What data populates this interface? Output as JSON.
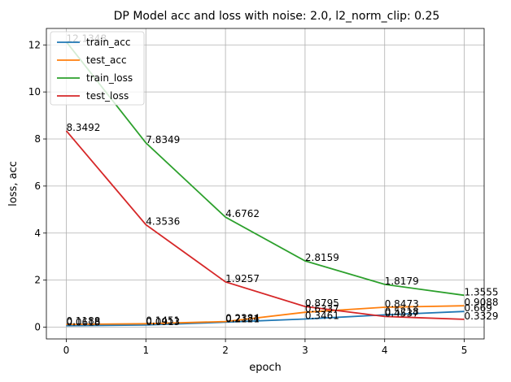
{
  "chart_data": {
    "type": "line",
    "title": "DP Model acc and loss with noise: 2.0, l2_norm_clip: 0.25",
    "xlabel": "epoch",
    "ylabel": "loss, acc",
    "x": [
      0,
      1,
      2,
      3,
      4,
      5
    ],
    "xticks": [
      "0",
      "1",
      "2",
      "3",
      "4",
      "5"
    ],
    "yticks": [
      "0",
      "2",
      "4",
      "6",
      "8",
      "10",
      "12"
    ],
    "xlim": [
      -0.25,
      5.25
    ],
    "ylim": [
      -0.5,
      12.7
    ],
    "grid": true,
    "legend_position": "top-left",
    "series": [
      {
        "name": "train_acc",
        "color": "#1f77b4",
        "values": [
          0.0618,
          0.0913,
          0.2121,
          0.3461,
          0.5218,
          0.669
        ],
        "labels": [
          "0.0618",
          "0.0913",
          "0.2121",
          "0.3461",
          "0.5218",
          "0.669"
        ]
      },
      {
        "name": "test_acc",
        "color": "#ff7f0e",
        "values": [
          0.1188,
          0.1451,
          0.2384,
          0.6337,
          0.8473,
          0.9088
        ],
        "labels": [
          "0.1188",
          "0.1451",
          "0.2384",
          "0.6337",
          "0.8473",
          "0.9088"
        ]
      },
      {
        "name": "train_loss",
        "color": "#2ca02c",
        "values": [
          12.1348,
          7.8349,
          4.6762,
          2.8159,
          1.8179,
          1.3555
        ],
        "labels": [
          "12.1348",
          "7.8349",
          "4.6762",
          "2.8159",
          "1.8179",
          "1.3555"
        ]
      },
      {
        "name": "test_loss",
        "color": "#d62728",
        "values": [
          8.3492,
          4.3536,
          1.9257,
          0.8795,
          0.4537,
          0.3329
        ],
        "labels": [
          "8.3492",
          "4.3536",
          "1.9257",
          "0.8795",
          "0.4537",
          "0.3329"
        ]
      }
    ]
  }
}
